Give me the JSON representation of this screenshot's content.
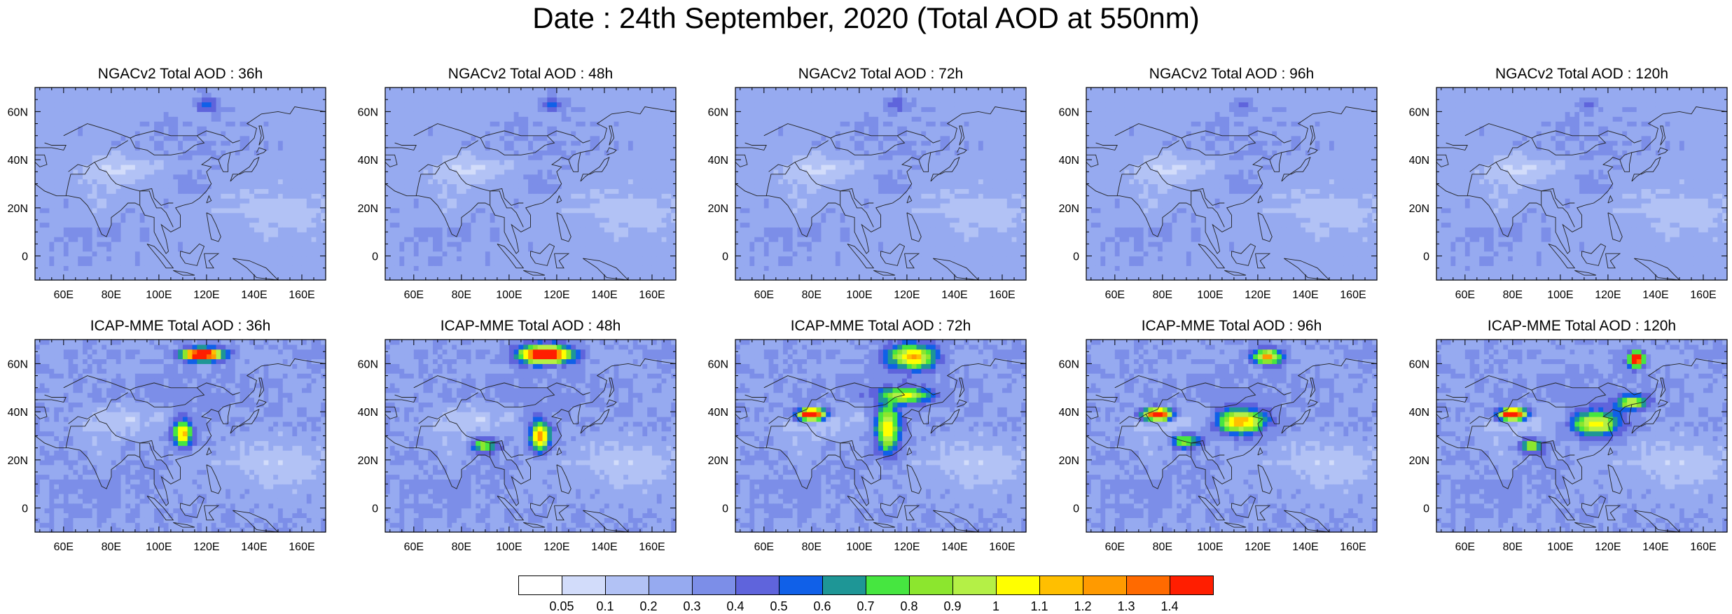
{
  "title": "Date : 24th September, 2020 (Total AOD at 550nm)",
  "axis": {
    "lat_ticks": [
      "60N",
      "40N",
      "20N",
      "0"
    ],
    "lon_ticks": [
      "60E",
      "80E",
      "100E",
      "120E",
      "140E",
      "160E"
    ]
  },
  "panels": [
    {
      "title": "NGACv2 Total AOD : 36h",
      "model": "NGACv2",
      "lead": "36h"
    },
    {
      "title": "NGACv2 Total AOD : 48h",
      "model": "NGACv2",
      "lead": "48h"
    },
    {
      "title": "NGACv2 Total AOD : 72h",
      "model": "NGACv2",
      "lead": "72h"
    },
    {
      "title": "NGACv2 Total AOD : 96h",
      "model": "NGACv2",
      "lead": "96h"
    },
    {
      "title": "NGACv2 Total AOD : 120h",
      "model": "NGACv2",
      "lead": "120h"
    },
    {
      "title": "ICAP-MME Total AOD : 36h",
      "model": "ICAP-MME",
      "lead": "36h"
    },
    {
      "title": "ICAP-MME Total AOD : 48h",
      "model": "ICAP-MME",
      "lead": "48h"
    },
    {
      "title": "ICAP-MME Total AOD : 72h",
      "model": "ICAP-MME",
      "lead": "72h"
    },
    {
      "title": "ICAP-MME Total AOD : 96h",
      "model": "ICAP-MME",
      "lead": "96h"
    },
    {
      "title": "ICAP-MME Total AOD : 120h",
      "model": "ICAP-MME",
      "lead": "120h"
    }
  ],
  "colorbar": {
    "labels": [
      "0.05",
      "0.1",
      "0.2",
      "0.3",
      "0.4",
      "0.5",
      "0.6",
      "0.7",
      "0.8",
      "0.9",
      "1",
      "1.1",
      "1.2",
      "1.3",
      "1.4"
    ],
    "colors": [
      "#ffffff",
      "#d2dcfa",
      "#b2c2f5",
      "#96aaf0",
      "#7c8ee8",
      "#5f64dc",
      "#1060e8",
      "#1e9696",
      "#46e640",
      "#8ce62e",
      "#b4f046",
      "#ffff00",
      "#ffbf00",
      "#ff9a00",
      "#ff6a00",
      "#ff1e00"
    ]
  }
}
